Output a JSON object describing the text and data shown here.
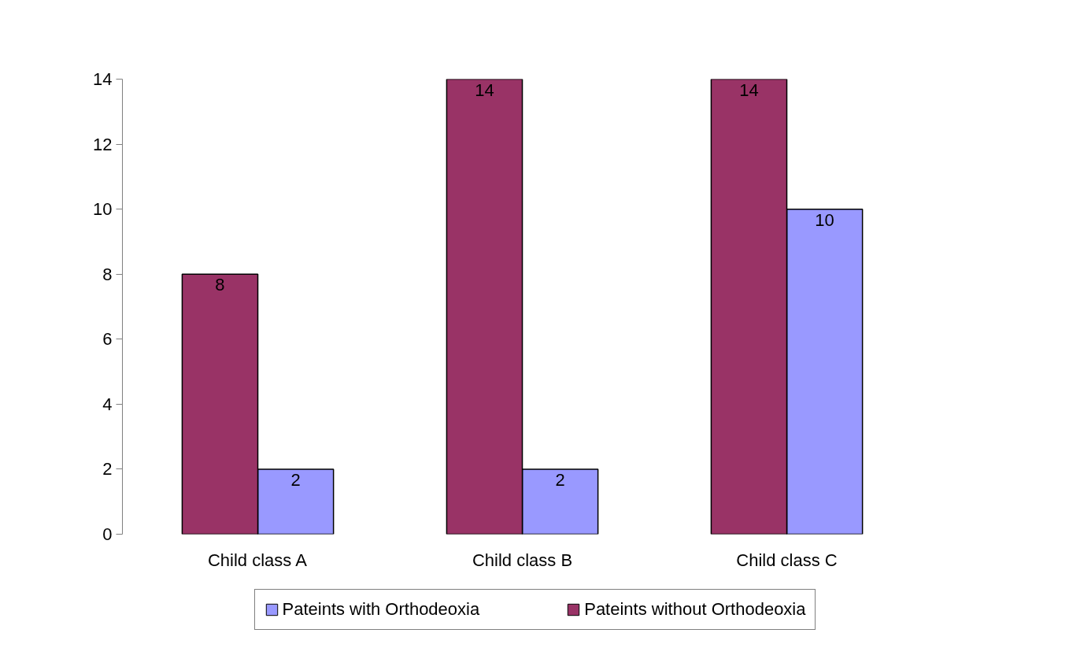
{
  "chart_data": {
    "type": "bar",
    "categories": [
      "Child class A",
      "Child class B",
      "Child class C"
    ],
    "series": [
      {
        "name": "Pateints with Orthodeoxia",
        "color": "#9999ff",
        "values": [
          2,
          2,
          10
        ]
      },
      {
        "name": "Pateints without Orthodeoxia",
        "color": "#993366",
        "values": [
          8,
          14,
          14
        ]
      }
    ],
    "ylim": [
      0,
      14
    ],
    "yticks": [
      0,
      2,
      4,
      6,
      8,
      10,
      12,
      14
    ],
    "data_labels": true,
    "legend": "bottom"
  }
}
